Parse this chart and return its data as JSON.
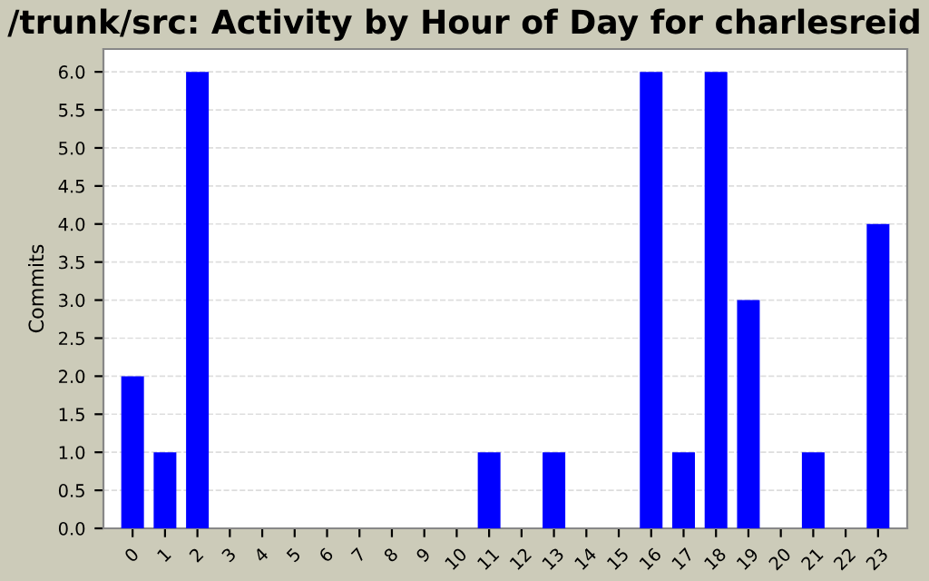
{
  "chart_data": {
    "type": "bar",
    "title": "/trunk/src: Activity by Hour of Day for charlesreid",
    "ylabel": "Commits",
    "categories": [
      "0",
      "1",
      "2",
      "3",
      "4",
      "5",
      "6",
      "7",
      "8",
      "9",
      "10",
      "11",
      "12",
      "13",
      "14",
      "15",
      "16",
      "17",
      "18",
      "19",
      "20",
      "21",
      "22",
      "23"
    ],
    "values": [
      2,
      1,
      6,
      0,
      0,
      0,
      0,
      0,
      0,
      0,
      0,
      1,
      0,
      1,
      0,
      0,
      6,
      1,
      6,
      3,
      0,
      1,
      0,
      4
    ],
    "color": "#0000ff",
    "ylim": [
      0,
      6.3
    ],
    "yticks": [
      {
        "value": 0,
        "label": "0.0"
      },
      {
        "value": 0.5,
        "label": "0.5"
      },
      {
        "value": 1,
        "label": "1.0"
      },
      {
        "value": 1.5,
        "label": "1.5"
      },
      {
        "value": 2,
        "label": "2.0"
      },
      {
        "value": 2.5,
        "label": "2.5"
      },
      {
        "value": 3,
        "label": "3.0"
      },
      {
        "value": 3.5,
        "label": "3.5"
      },
      {
        "value": 4,
        "label": "4.0"
      },
      {
        "value": 4.5,
        "label": "4.5"
      },
      {
        "value": 5,
        "label": "5.0"
      },
      {
        "value": 5.5,
        "label": "5.5"
      },
      {
        "value": 6,
        "label": "6.0"
      }
    ],
    "grid": "y"
  }
}
